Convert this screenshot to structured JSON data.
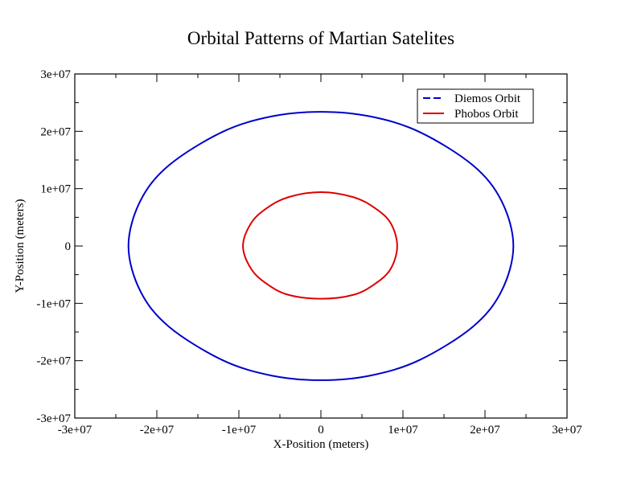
{
  "chart_data": {
    "type": "line",
    "title": "Orbital Patterns of Martian Satelites",
    "xlabel": "X-Position (meters)",
    "ylabel": "Y-Position (meters)",
    "xlim": [
      -30000000,
      30000000
    ],
    "ylim": [
      -30000000,
      30000000
    ],
    "x_ticks": [
      {
        "value": -30000000,
        "label": "-3e+07"
      },
      {
        "value": -20000000,
        "label": "-2e+07"
      },
      {
        "value": -10000000,
        "label": "-1e+07"
      },
      {
        "value": 0,
        "label": "0"
      },
      {
        "value": 10000000,
        "label": "1e+07"
      },
      {
        "value": 20000000,
        "label": "2e+07"
      },
      {
        "value": 30000000,
        "label": "3e+07"
      }
    ],
    "y_ticks": [
      {
        "value": -30000000,
        "label": "-3e+07"
      },
      {
        "value": -20000000,
        "label": "-2e+07"
      },
      {
        "value": -10000000,
        "label": "-1e+07"
      },
      {
        "value": 0,
        "label": "0"
      },
      {
        "value": 10000000,
        "label": "1e+07"
      },
      {
        "value": 20000000,
        "label": "2e+07"
      },
      {
        "value": 30000000,
        "label": "3e+07"
      }
    ],
    "grid": false,
    "legend_position": "top-right",
    "series": [
      {
        "name": "Diemos Orbit",
        "color": "#0000cc",
        "line_style": "dashed",
        "points": [
          [
            23460000,
            0
          ],
          [
            22000000,
            7900000
          ],
          [
            18500000,
            14100000
          ],
          [
            12000000,
            19900000
          ],
          [
            6000000,
            22600000
          ],
          [
            0,
            23400000
          ],
          [
            -6000000,
            22600000
          ],
          [
            -12000000,
            19900000
          ],
          [
            -18500000,
            14100000
          ],
          [
            -22000000,
            7900000
          ],
          [
            -23460000,
            0
          ],
          [
            -22000000,
            -7900000
          ],
          [
            -18500000,
            -14100000
          ],
          [
            -12000000,
            -19900000
          ],
          [
            -6000000,
            -22600000
          ],
          [
            0,
            -23400000
          ],
          [
            6000000,
            -22600000
          ],
          [
            12000000,
            -19900000
          ],
          [
            18500000,
            -14100000
          ],
          [
            22000000,
            -7900000
          ],
          [
            23460000,
            0
          ]
        ]
      },
      {
        "name": "Phobos Orbit",
        "color": "#dd0000",
        "line_style": "solid",
        "points": [
          [
            9300000,
            0
          ],
          [
            8500000,
            4000000
          ],
          [
            6600000,
            6600000
          ],
          [
            4000000,
            8500000
          ],
          [
            0,
            9400000
          ],
          [
            -4000000,
            8500000
          ],
          [
            -6600000,
            6600000
          ],
          [
            -8500000,
            4000000
          ],
          [
            -9500000,
            0
          ],
          [
            -8500000,
            -4000000
          ],
          [
            -6600000,
            -6600000
          ],
          [
            -4000000,
            -8500000
          ],
          [
            0,
            -9200000
          ],
          [
            4000000,
            -8500000
          ],
          [
            6600000,
            -6600000
          ],
          [
            8500000,
            -4000000
          ],
          [
            9300000,
            0
          ]
        ]
      }
    ]
  }
}
